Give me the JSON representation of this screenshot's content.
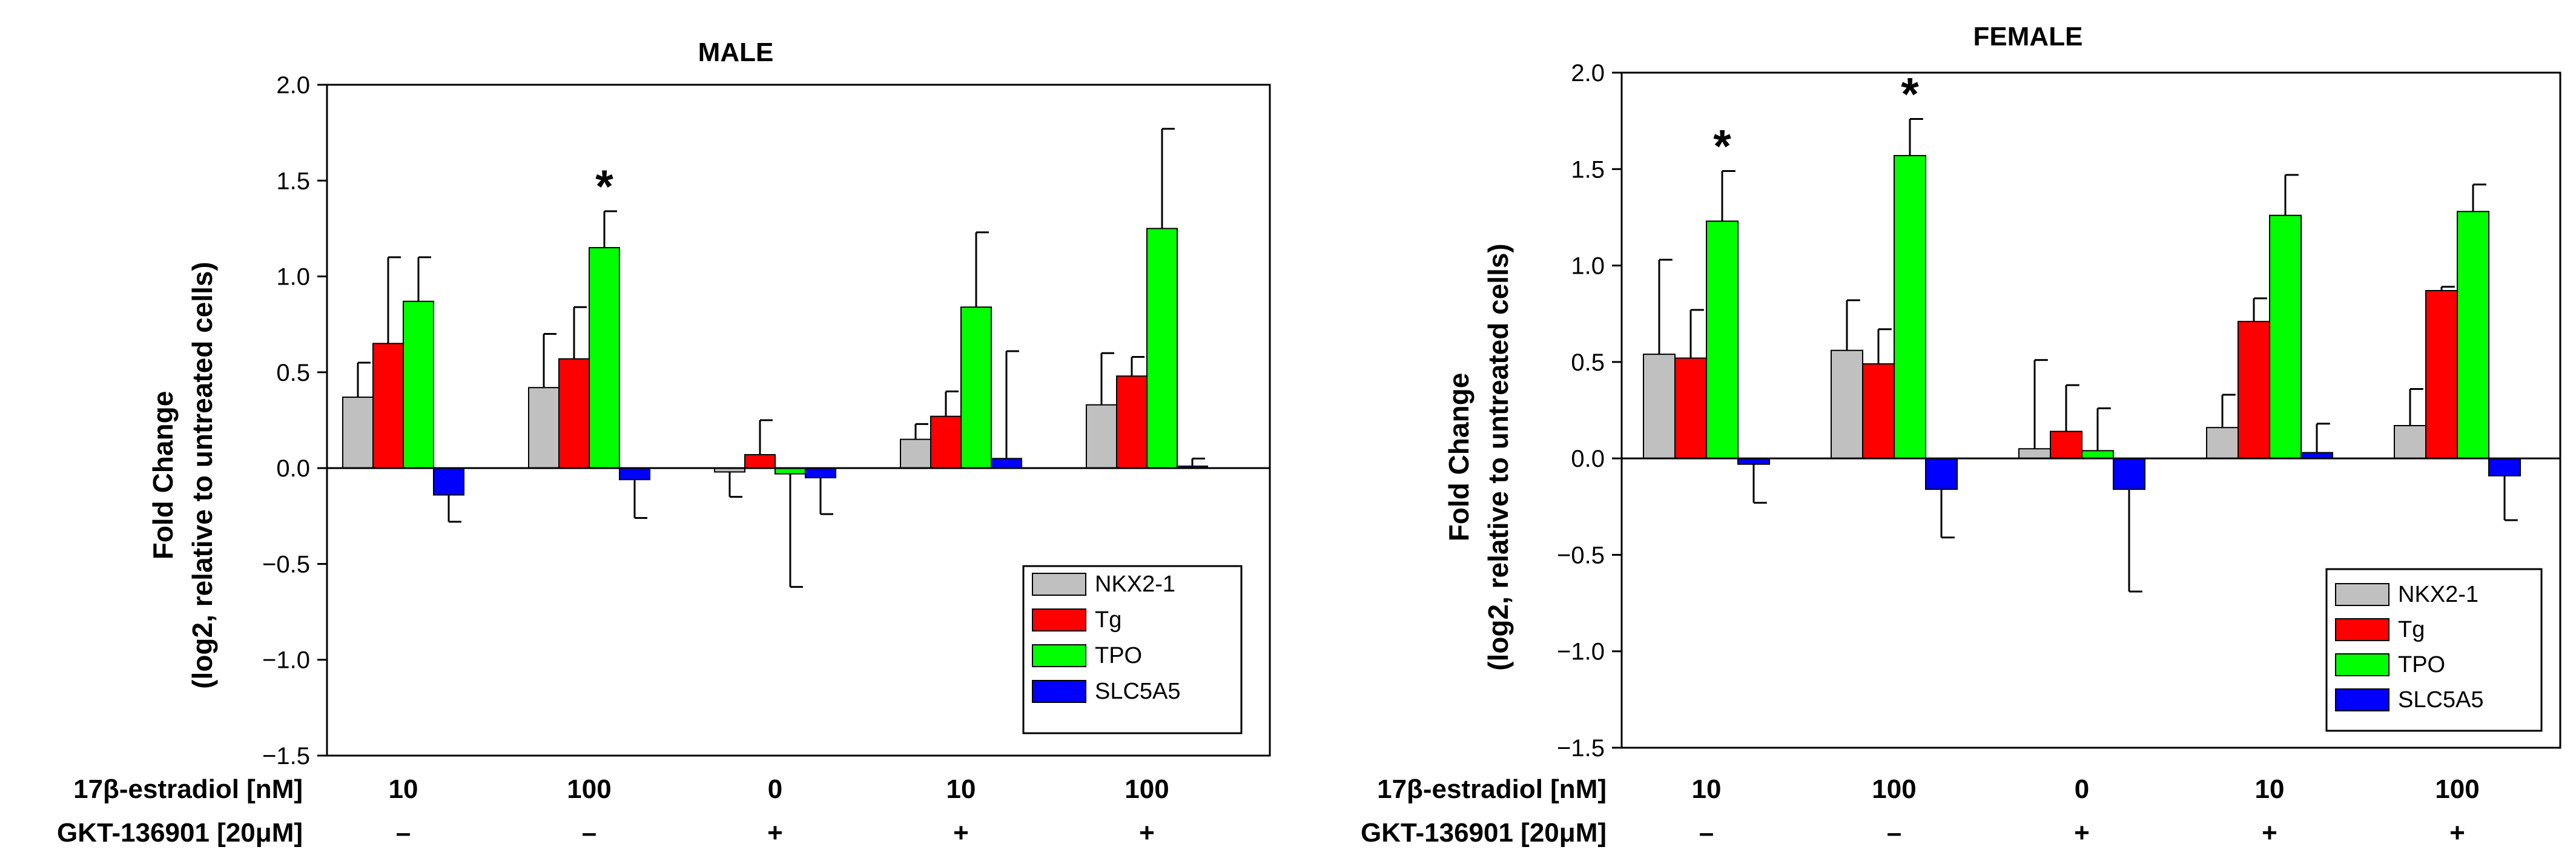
{
  "chart_data": [
    {
      "type": "bar",
      "title": "MALE",
      "ylabel_line1": "Fold Change",
      "ylabel_line2": "(log2, relative to untreated cells)",
      "ylim": [
        -1.5,
        2.0
      ],
      "yticks": [
        -1.5,
        -1.0,
        -0.5,
        0.0,
        0.5,
        1.0,
        1.5,
        2.0
      ],
      "categories": [
        {
          "estradiol": "10",
          "gkt": "–"
        },
        {
          "estradiol": "100",
          "gkt": "–"
        },
        {
          "estradiol": "0",
          "gkt": "+"
        },
        {
          "estradiol": "10",
          "gkt": "+"
        },
        {
          "estradiol": "100",
          "gkt": "+"
        }
      ],
      "series": [
        {
          "name": "NKX2-1",
          "color": "#c0c0c0",
          "values": [
            0.37,
            0.42,
            -0.02,
            0.15,
            0.33
          ],
          "errors": [
            0.18,
            0.28,
            0.13,
            0.08,
            0.27
          ]
        },
        {
          "name": "Tg",
          "color": "#ff0000",
          "values": [
            0.65,
            0.57,
            0.07,
            0.27,
            0.48
          ],
          "errors": [
            0.45,
            0.27,
            0.18,
            0.13,
            0.1
          ]
        },
        {
          "name": "TPO",
          "color": "#00ff00",
          "values": [
            0.87,
            1.15,
            -0.03,
            0.84,
            1.25
          ],
          "errors": [
            0.23,
            0.19,
            0.59,
            0.39,
            0.52
          ]
        },
        {
          "name": "SLC5A5",
          "color": "#0000ff",
          "values": [
            -0.14,
            -0.06,
            -0.05,
            0.05,
            0.01
          ],
          "errors": [
            0.14,
            0.2,
            0.19,
            0.56,
            0.04
          ]
        }
      ],
      "annotations": [
        {
          "text": "*",
          "category_index": 1,
          "series": "TPO"
        }
      ],
      "legend": "bottom-right"
    },
    {
      "type": "bar",
      "title": "FEMALE",
      "ylabel_line1": "Fold Change",
      "ylabel_line2": "(log2, relative to untreated cells)",
      "ylim": [
        -1.5,
        2.0
      ],
      "yticks": [
        -1.5,
        -1.0,
        -0.5,
        0.0,
        0.5,
        1.0,
        1.5,
        2.0
      ],
      "categories": [
        {
          "estradiol": "10",
          "gkt": "–"
        },
        {
          "estradiol": "100",
          "gkt": "–"
        },
        {
          "estradiol": "0",
          "gkt": "+"
        },
        {
          "estradiol": "10",
          "gkt": "+"
        },
        {
          "estradiol": "100",
          "gkt": "+"
        }
      ],
      "series": [
        {
          "name": "NKX2-1",
          "color": "#c0c0c0",
          "values": [
            0.54,
            0.56,
            0.05,
            0.16,
            0.17
          ],
          "errors": [
            0.49,
            0.26,
            0.46,
            0.17,
            0.19
          ]
        },
        {
          "name": "Tg",
          "color": "#ff0000",
          "values": [
            0.52,
            0.49,
            0.14,
            0.71,
            0.87
          ],
          "errors": [
            0.25,
            0.18,
            0.24,
            0.12,
            0.02
          ]
        },
        {
          "name": "TPO",
          "color": "#00ff00",
          "values": [
            1.23,
            1.57,
            0.04,
            1.26,
            1.28
          ],
          "errors": [
            0.26,
            0.19,
            0.22,
            0.21,
            0.14
          ]
        },
        {
          "name": "SLC5A5",
          "color": "#0000ff",
          "values": [
            -0.03,
            -0.16,
            -0.16,
            0.03,
            -0.09
          ],
          "errors": [
            0.2,
            0.25,
            0.53,
            0.15,
            0.23
          ]
        }
      ],
      "annotations": [
        {
          "text": "*",
          "category_index": 0,
          "series": "TPO"
        },
        {
          "text": "*",
          "category_index": 1,
          "series": "TPO"
        }
      ],
      "legend": "bottom-right"
    }
  ],
  "row_labels": {
    "estradiol": "17β-estradiol [nM]",
    "gkt": "GKT-136901 [20μM]"
  }
}
